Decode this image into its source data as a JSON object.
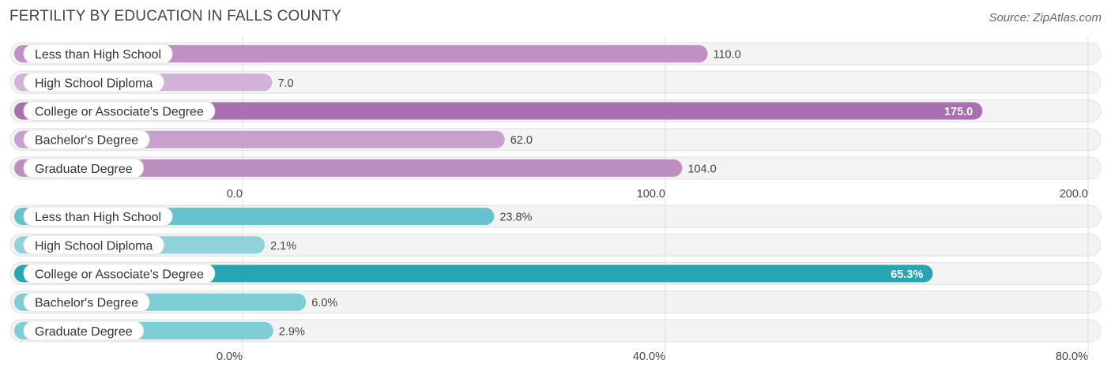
{
  "header": {
    "title": "FERTILITY BY EDUCATION IN FALLS COUNTY",
    "source": "Source: ZipAtlas.com"
  },
  "chart_data": [
    {
      "type": "bar",
      "orientation": "horizontal",
      "categories": [
        "Less than High School",
        "High School Diploma",
        "College or Associate's Degree",
        "Bachelor's Degree",
        "Graduate Degree"
      ],
      "values": [
        110.0,
        7.0,
        175.0,
        62.0,
        104.0
      ],
      "value_labels": [
        "110.0",
        "7.0",
        "175.0",
        "62.0",
        "104.0"
      ],
      "xlim": [
        0,
        200
      ],
      "ticks": [
        0,
        100,
        200
      ],
      "tick_labels": [
        "0.0",
        "100.0",
        "200.0"
      ],
      "colors": [
        "#c18fc3",
        "#d2b3d8",
        "#a870ae",
        "#c8a0cc",
        "#bd8ec0"
      ],
      "highlight_index": 2,
      "grid": true
    },
    {
      "type": "bar",
      "orientation": "horizontal",
      "categories": [
        "Less than High School",
        "High School Diploma",
        "College or Associate's Degree",
        "Bachelor's Degree",
        "Graduate Degree"
      ],
      "values": [
        23.8,
        2.1,
        65.3,
        6.0,
        2.9
      ],
      "value_labels": [
        "23.8%",
        "2.1%",
        "65.3%",
        "6.0%",
        "2.9%"
      ],
      "xlim": [
        0,
        80
      ],
      "ticks": [
        0,
        40,
        80
      ],
      "tick_labels": [
        "0.0%",
        "40.0%",
        "80.0%"
      ],
      "colors": [
        "#66c2cc",
        "#8fd2d9",
        "#26a6b5",
        "#7ecdd5",
        "#7fcdd5"
      ],
      "highlight_index": 2,
      "grid": true
    }
  ]
}
